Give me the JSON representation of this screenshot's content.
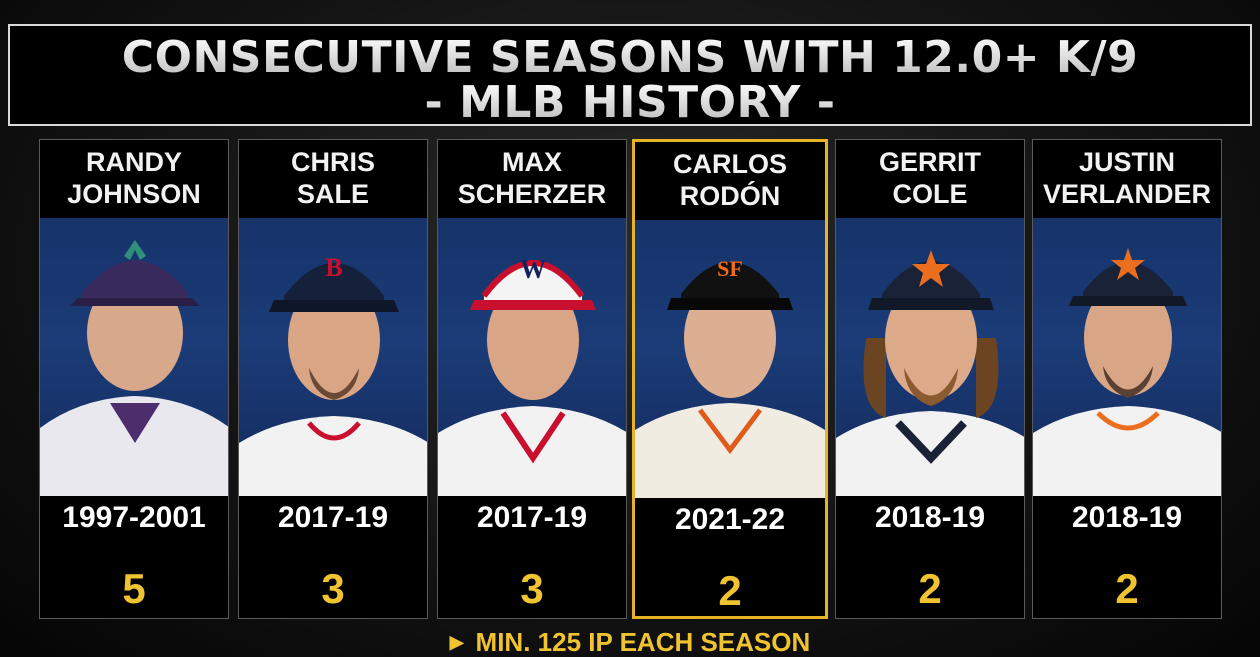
{
  "title": {
    "line1": "CONSECUTIVE SEASONS WITH 12.0+ K/9",
    "line2": "- MLB HISTORY -"
  },
  "colors": {
    "accent_gold": "#f0c330",
    "highlight_border": "#e5b323",
    "photo_blue": "#1b3c78"
  },
  "players": [
    {
      "first": "RANDY",
      "last": "JOHNSON",
      "years": "1997-2001",
      "count": "5",
      "cap": "#3a2b5e",
      "jersey": "#e8e8ee",
      "highlight": false
    },
    {
      "first": "CHRIS",
      "last": "SALE",
      "years": "2017-19",
      "count": "3",
      "cap": "#15213a",
      "jersey": "#f2f2f2",
      "highlight": false
    },
    {
      "first": "MAX",
      "last": "SCHERZER",
      "years": "2017-19",
      "count": "3",
      "cap": "#f4f4f4",
      "jersey": "#f2f2f2",
      "highlight": false
    },
    {
      "first": "CARLOS",
      "last": "RODÓN",
      "years": "2021-22",
      "count": "2",
      "cap": "#111111",
      "jersey": "#f1ece2",
      "highlight": true
    },
    {
      "first": "GERRIT",
      "last": "COLE",
      "years": "2018-19",
      "count": "2",
      "cap": "#1a2238",
      "jersey": "#f2f2f2",
      "highlight": false
    },
    {
      "first": "JUSTIN",
      "last": "VERLANDER",
      "years": "2018-19",
      "count": "2",
      "cap": "#1a2238",
      "jersey": "#f2f2f2",
      "highlight": false
    }
  ],
  "footnote": {
    "icon": "play-triangle-icon",
    "text": "MIN. 125 IP EACH SEASON"
  }
}
